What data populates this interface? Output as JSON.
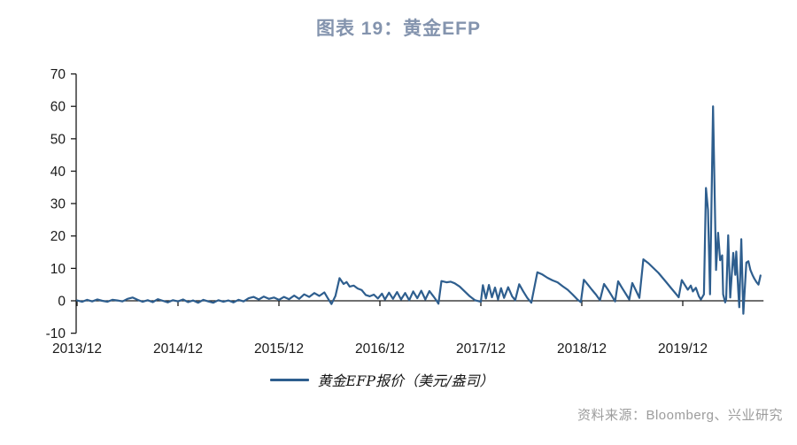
{
  "title": "图表 19：黄金EFP",
  "legend": {
    "label": "黄金EFP报价（美元/盎司）"
  },
  "source": {
    "text": "资料来源：Bloomberg、兴业研究"
  },
  "colors": {
    "title": "#8494ae",
    "line": "#2e5e8e",
    "axis": "#1a1a1a",
    "tick_label": "#1a1a1a",
    "source_text": "#9c9c9c",
    "background": "#ffffff"
  },
  "chart_data": {
    "type": "line",
    "title": "图表 19：黄金EFP",
    "series_name": "黄金EFP报价（美元/盎司）",
    "xlabel": "",
    "ylabel": "",
    "x_tick_labels": [
      "2013/12",
      "2014/12",
      "2015/12",
      "2016/12",
      "2017/12",
      "2018/12",
      "2019/12"
    ],
    "x_unit_note": "points use fractional years since 2013/12; series ends ~2020/09",
    "y_ticks": [
      70,
      60,
      50,
      40,
      30,
      20,
      10,
      0,
      -10
    ],
    "ylim": [
      -10,
      70
    ],
    "xlim_years": [
      0,
      6.8
    ],
    "grid": false,
    "legend_position": "bottom",
    "points": [
      [
        0.0,
        0.1
      ],
      [
        0.05,
        -0.3
      ],
      [
        0.1,
        0.3
      ],
      [
        0.15,
        -0.2
      ],
      [
        0.2,
        0.4
      ],
      [
        0.25,
        0.0
      ],
      [
        0.3,
        -0.3
      ],
      [
        0.35,
        0.3
      ],
      [
        0.4,
        0.1
      ],
      [
        0.45,
        -0.2
      ],
      [
        0.5,
        0.6
      ],
      [
        0.55,
        1.0
      ],
      [
        0.6,
        0.3
      ],
      [
        0.65,
        -0.3
      ],
      [
        0.7,
        0.2
      ],
      [
        0.75,
        -0.4
      ],
      [
        0.8,
        0.5
      ],
      [
        0.85,
        0.0
      ],
      [
        0.9,
        -0.5
      ],
      [
        0.95,
        0.2
      ],
      [
        1.0,
        -0.2
      ],
      [
        1.05,
        0.4
      ],
      [
        1.1,
        -0.4
      ],
      [
        1.15,
        0.1
      ],
      [
        1.2,
        -0.6
      ],
      [
        1.25,
        0.3
      ],
      [
        1.3,
        -0.2
      ],
      [
        1.35,
        -0.6
      ],
      [
        1.4,
        0.2
      ],
      [
        1.45,
        -0.3
      ],
      [
        1.5,
        0.1
      ],
      [
        1.55,
        -0.5
      ],
      [
        1.6,
        0.3
      ],
      [
        1.65,
        -0.2
      ],
      [
        1.7,
        0.8
      ],
      [
        1.75,
        1.2
      ],
      [
        1.8,
        0.4
      ],
      [
        1.85,
        1.3
      ],
      [
        1.9,
        0.6
      ],
      [
        1.95,
        1.0
      ],
      [
        2.0,
        0.3
      ],
      [
        2.05,
        1.2
      ],
      [
        2.1,
        0.5
      ],
      [
        2.15,
        1.6
      ],
      [
        2.2,
        0.6
      ],
      [
        2.25,
        2.0
      ],
      [
        2.3,
        1.2
      ],
      [
        2.35,
        2.4
      ],
      [
        2.4,
        1.5
      ],
      [
        2.45,
        2.6
      ],
      [
        2.48,
        1.0
      ],
      [
        2.52,
        -1.0
      ],
      [
        2.56,
        1.5
      ],
      [
        2.6,
        7.0
      ],
      [
        2.64,
        5.2
      ],
      [
        2.67,
        5.8
      ],
      [
        2.7,
        4.4
      ],
      [
        2.74,
        4.7
      ],
      [
        2.78,
        3.8
      ],
      [
        2.82,
        3.3
      ],
      [
        2.86,
        1.8
      ],
      [
        2.9,
        1.4
      ],
      [
        2.94,
        1.9
      ],
      [
        2.98,
        0.7
      ],
      [
        3.02,
        2.2
      ],
      [
        3.05,
        0.4
      ],
      [
        3.09,
        2.5
      ],
      [
        3.13,
        0.6
      ],
      [
        3.17,
        2.7
      ],
      [
        3.21,
        0.4
      ],
      [
        3.25,
        2.4
      ],
      [
        3.29,
        0.2
      ],
      [
        3.33,
        2.9
      ],
      [
        3.37,
        0.8
      ],
      [
        3.41,
        3.1
      ],
      [
        3.45,
        0.4
      ],
      [
        3.49,
        3.0
      ],
      [
        3.53,
        1.4
      ],
      [
        3.56,
        0.1
      ],
      [
        3.58,
        -0.9
      ],
      [
        3.61,
        6.1
      ],
      [
        3.66,
        5.7
      ],
      [
        3.7,
        5.9
      ],
      [
        3.74,
        5.4
      ],
      [
        3.79,
        4.4
      ],
      [
        3.84,
        2.9
      ],
      [
        3.89,
        1.4
      ],
      [
        3.94,
        0.2
      ],
      [
        4.0,
        -0.3
      ],
      [
        4.02,
        4.8
      ],
      [
        4.05,
        0.7
      ],
      [
        4.08,
        4.9
      ],
      [
        4.11,
        1.1
      ],
      [
        4.14,
        4.1
      ],
      [
        4.17,
        0.4
      ],
      [
        4.2,
        3.9
      ],
      [
        4.23,
        0.9
      ],
      [
        4.27,
        4.2
      ],
      [
        4.31,
        1.4
      ],
      [
        4.34,
        0.2
      ],
      [
        4.38,
        5.1
      ],
      [
        4.42,
        2.9
      ],
      [
        4.46,
        0.9
      ],
      [
        4.5,
        -0.6
      ],
      [
        4.56,
        8.8
      ],
      [
        4.61,
        8.1
      ],
      [
        4.66,
        7.1
      ],
      [
        4.71,
        6.3
      ],
      [
        4.76,
        5.7
      ],
      [
        4.81,
        4.5
      ],
      [
        4.86,
        3.4
      ],
      [
        4.91,
        1.9
      ],
      [
        4.96,
        0.3
      ],
      [
        4.99,
        -0.4
      ],
      [
        5.02,
        6.5
      ],
      [
        5.06,
        5.0
      ],
      [
        5.1,
        3.4
      ],
      [
        5.14,
        1.9
      ],
      [
        5.18,
        0.2
      ],
      [
        5.22,
        5.2
      ],
      [
        5.26,
        3.4
      ],
      [
        5.3,
        1.4
      ],
      [
        5.33,
        -0.2
      ],
      [
        5.36,
        6.0
      ],
      [
        5.4,
        3.9
      ],
      [
        5.44,
        1.9
      ],
      [
        5.47,
        0.4
      ],
      [
        5.5,
        5.5
      ],
      [
        5.54,
        2.9
      ],
      [
        5.57,
        0.9
      ],
      [
        5.61,
        12.8
      ],
      [
        5.66,
        11.6
      ],
      [
        5.71,
        10.1
      ],
      [
        5.76,
        8.6
      ],
      [
        5.8,
        7.1
      ],
      [
        5.84,
        5.6
      ],
      [
        5.88,
        4.1
      ],
      [
        5.92,
        2.6
      ],
      [
        5.96,
        1.1
      ],
      [
        5.99,
        6.4
      ],
      [
        6.02,
        4.9
      ],
      [
        6.05,
        3.4
      ],
      [
        6.08,
        4.7
      ],
      [
        6.1,
        2.9
      ],
      [
        6.13,
        4.0
      ],
      [
        6.16,
        1.4
      ],
      [
        6.18,
        0.4
      ],
      [
        6.21,
        2.0
      ],
      [
        6.23,
        34.8
      ],
      [
        6.25,
        28.0
      ],
      [
        6.27,
        2.0
      ],
      [
        6.3,
        60.0
      ],
      [
        6.33,
        9.5
      ],
      [
        6.35,
        21.0
      ],
      [
        6.37,
        12.5
      ],
      [
        6.39,
        14.0
      ],
      [
        6.4,
        2.0
      ],
      [
        6.42,
        -0.5
      ],
      [
        6.43,
        0.5
      ],
      [
        6.45,
        20.2
      ],
      [
        6.47,
        1.0
      ],
      [
        6.5,
        14.8
      ],
      [
        6.52,
        8.0
      ],
      [
        6.53,
        15.2
      ],
      [
        6.55,
        3.0
      ],
      [
        6.56,
        -2.0
      ],
      [
        6.58,
        19.0
      ],
      [
        6.6,
        -4.0
      ],
      [
        6.63,
        11.8
      ],
      [
        6.65,
        12.2
      ],
      [
        6.67,
        9.5
      ],
      [
        6.69,
        8.0
      ],
      [
        6.71,
        6.8
      ],
      [
        6.73,
        5.8
      ],
      [
        6.75,
        5.0
      ],
      [
        6.77,
        7.8
      ]
    ]
  }
}
